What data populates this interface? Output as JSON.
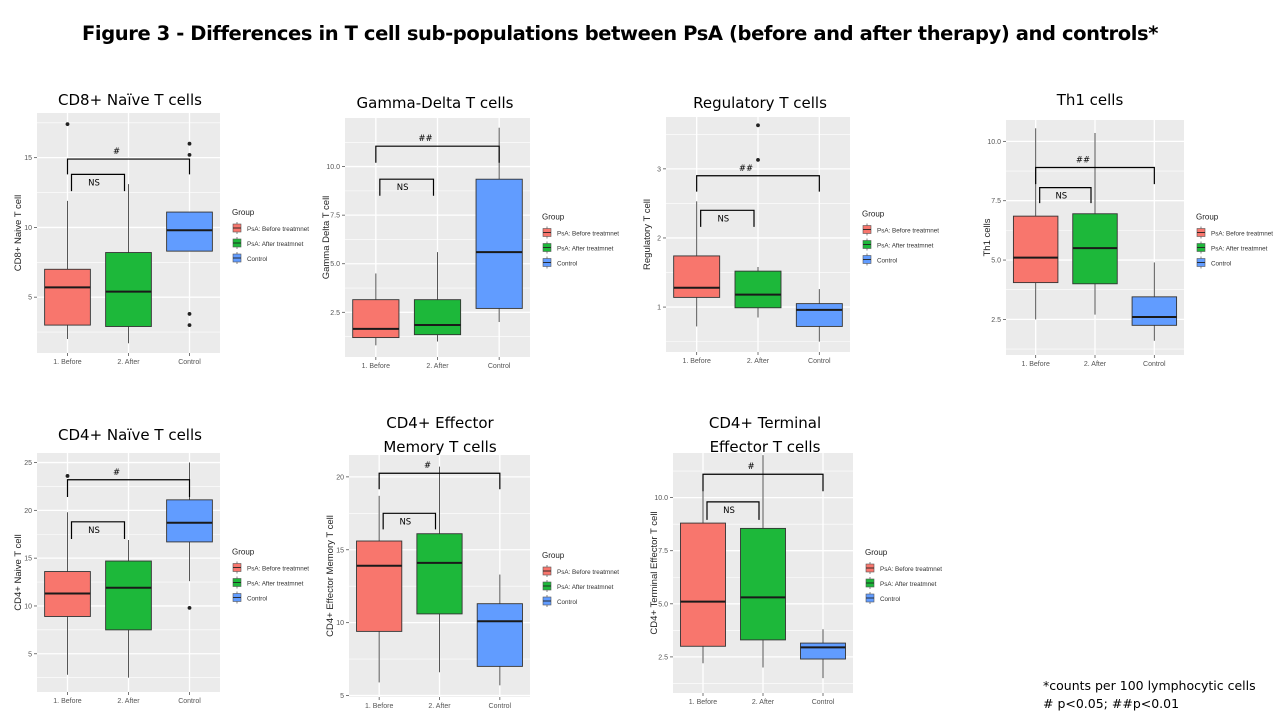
{
  "figure": {
    "title": "Figure 3 - Differences in T cell sub-populations between PsA (before and after therapy) and controls*",
    "footnotes": [
      "*counts per 100 lymphocytic cells",
      "# p<0.05; ##p<0.01"
    ]
  },
  "legend": {
    "title": "Group",
    "entries": [
      {
        "label": "PsA: Before treatmnet",
        "color": "#F8766D"
      },
      {
        "label": "PsA: After treatmnet",
        "color": "#1DB83A"
      },
      {
        "label": "Control",
        "color": "#619CFF"
      }
    ]
  },
  "colors": {
    "panel_bg": "#EBEBEB",
    "grid": "#FFFFFF",
    "box_edge": "#333333",
    "whisker": "#555555",
    "tick_text": "#555555"
  },
  "chart_data": [
    {
      "type": "boxplot",
      "title": "CD8+ Naïve T cells",
      "ylabel": "CD8+ Naive T cell",
      "xlabel": "",
      "categories": [
        "1. Before",
        "2. After",
        "Control"
      ],
      "ylim": [
        1.0,
        18.2
      ],
      "yticks": [
        5,
        10,
        15
      ],
      "ytick_labels": [
        "5",
        "10",
        "15"
      ],
      "grid": true,
      "legend": "right",
      "boxes": [
        {
          "min": 2.0,
          "q1": 3.0,
          "median": 5.7,
          "q3": 7.0,
          "max": 11.9,
          "outliers": [
            17.4
          ]
        },
        {
          "min": 1.7,
          "q1": 2.9,
          "median": 5.4,
          "q3": 8.2,
          "max": 13.1,
          "outliers": []
        },
        {
          "min": 8.3,
          "q1": 8.3,
          "median": 9.8,
          "q3": 11.1,
          "max": 11.1,
          "outliers": [
            16.0,
            15.2,
            3.8,
            3.0
          ]
        }
      ],
      "annotations": [
        {
          "label": "#",
          "from": 0,
          "to": 2,
          "y": 14.9,
          "drop": 1.1
        },
        {
          "label": "NS",
          "from": 0,
          "to": 1,
          "y": 13.8,
          "drop": 1.2
        }
      ]
    },
    {
      "type": "boxplot",
      "title": "Gamma-Delta T cells",
      "ylabel": "Gamma Delta T cell",
      "xlabel": "",
      "categories": [
        "1. Before",
        "2. After",
        "Control"
      ],
      "ylim": [
        0.2,
        12.5
      ],
      "yticks": [
        2.5,
        5.0,
        7.5,
        10.0
      ],
      "ytick_labels": [
        "2.5",
        "5.0",
        "7.5",
        "10.0"
      ],
      "grid": true,
      "legend": "right",
      "boxes": [
        {
          "min": 0.8,
          "q1": 1.2,
          "median": 1.65,
          "q3": 3.15,
          "max": 4.5,
          "outliers": []
        },
        {
          "min": 1.0,
          "q1": 1.35,
          "median": 1.85,
          "q3": 3.15,
          "max": 5.6,
          "outliers": []
        },
        {
          "min": 2.0,
          "q1": 2.7,
          "median": 5.6,
          "q3": 9.35,
          "max": 12.0,
          "outliers": []
        }
      ],
      "annotations": [
        {
          "label": "##",
          "from": 0,
          "to": 2,
          "y": 11.05,
          "drop": 0.85
        },
        {
          "label": "NS",
          "from": 0,
          "to": 1,
          "y": 9.35,
          "drop": 0.85
        }
      ]
    },
    {
      "type": "boxplot",
      "title": "Regulatory T cells",
      "ylabel": "Regulatory T cell",
      "xlabel": "",
      "categories": [
        "1. Before",
        "2. After",
        "Control"
      ],
      "ylim": [
        0.35,
        3.75
      ],
      "yticks": [
        1,
        2,
        3
      ],
      "ytick_labels": [
        "1",
        "2",
        "3"
      ],
      "grid": true,
      "legend": "right",
      "boxes": [
        {
          "min": 0.72,
          "q1": 1.14,
          "median": 1.28,
          "q3": 1.74,
          "max": 2.53,
          "outliers": []
        },
        {
          "min": 0.85,
          "q1": 0.99,
          "median": 1.18,
          "q3": 1.52,
          "max": 1.58,
          "outliers": [
            3.63,
            3.13
          ]
        },
        {
          "min": 0.5,
          "q1": 0.72,
          "median": 0.96,
          "q3": 1.05,
          "max": 1.26,
          "outliers": []
        }
      ],
      "annotations": [
        {
          "label": "##",
          "from": 0,
          "to": 2,
          "y": 2.9,
          "drop": 0.23
        },
        {
          "label": "NS",
          "from": 0,
          "to": 1,
          "y": 2.4,
          "drop": 0.24
        }
      ]
    },
    {
      "type": "boxplot",
      "title": "Th1 cells",
      "ylabel": "Th1 cells",
      "xlabel": "",
      "categories": [
        "1. Before",
        "2. After",
        "Control"
      ],
      "ylim": [
        1.0,
        10.9
      ],
      "yticks": [
        2.5,
        5.0,
        7.5,
        10.0
      ],
      "ytick_labels": [
        "2.5",
        "5.0",
        "7.5",
        "10.0"
      ],
      "grid": true,
      "legend": "right",
      "boxes": [
        {
          "min": 2.5,
          "q1": 4.05,
          "median": 5.1,
          "q3": 6.85,
          "max": 10.55,
          "outliers": []
        },
        {
          "min": 2.7,
          "q1": 4.0,
          "median": 5.5,
          "q3": 6.95,
          "max": 10.35,
          "outliers": []
        },
        {
          "min": 1.6,
          "q1": 2.25,
          "median": 2.6,
          "q3": 3.45,
          "max": 4.9,
          "outliers": []
        }
      ],
      "annotations": [
        {
          "label": "##",
          "from": 0,
          "to": 2,
          "y": 8.9,
          "drop": 0.7
        },
        {
          "label": "NS",
          "from": 0,
          "to": 1,
          "y": 8.05,
          "drop": 0.65
        }
      ]
    },
    {
      "type": "boxplot",
      "title": "CD4+ Naïve T cells",
      "ylabel": "CD4+ Naive T cell",
      "xlabel": "",
      "categories": [
        "1. Before",
        "2. After",
        "Control"
      ],
      "ylim": [
        1.0,
        26.0
      ],
      "yticks": [
        5,
        10,
        15,
        20,
        25
      ],
      "ytick_labels": [
        "5",
        "10",
        "15",
        "20",
        "25"
      ],
      "grid": true,
      "legend": "right",
      "boxes": [
        {
          "min": 2.8,
          "q1": 8.9,
          "median": 11.3,
          "q3": 13.6,
          "max": 19.8,
          "outliers": [
            23.6
          ]
        },
        {
          "min": 2.5,
          "q1": 7.5,
          "median": 11.9,
          "q3": 14.7,
          "max": 16.9,
          "outliers": []
        },
        {
          "min": 12.6,
          "q1": 16.7,
          "median": 18.7,
          "q3": 21.1,
          "max": 25.0,
          "outliers": [
            9.8
          ]
        }
      ],
      "annotations": [
        {
          "label": "#",
          "from": 0,
          "to": 2,
          "y": 23.2,
          "drop": 1.8
        },
        {
          "label": "NS",
          "from": 0,
          "to": 1,
          "y": 18.8,
          "drop": 1.8
        }
      ]
    },
    {
      "type": "boxplot",
      "title": "CD4+ Effector\nMemory T cells",
      "ylabel": "CD4+ Effector Memory T cell",
      "xlabel": "",
      "categories": [
        "1. Before",
        "2. After",
        "Control"
      ],
      "ylim": [
        4.9,
        21.5
      ],
      "yticks": [
        5,
        10,
        15,
        20
      ],
      "ytick_labels": [
        "5",
        "10",
        "15",
        "20"
      ],
      "grid": true,
      "legend": "right",
      "boxes": [
        {
          "min": 5.9,
          "q1": 9.4,
          "median": 13.9,
          "q3": 15.6,
          "max": 18.7,
          "outliers": []
        },
        {
          "min": 6.6,
          "q1": 10.6,
          "median": 14.1,
          "q3": 16.1,
          "max": 20.7,
          "outliers": []
        },
        {
          "min": 5.7,
          "q1": 7.0,
          "median": 10.1,
          "q3": 11.3,
          "max": 13.3,
          "outliers": []
        }
      ],
      "annotations": [
        {
          "label": "#",
          "from": 0,
          "to": 2,
          "y": 20.25,
          "drop": 1.1
        },
        {
          "label": "NS",
          "from": 0,
          "to": 1,
          "y": 17.5,
          "drop": 1.1
        }
      ]
    },
    {
      "type": "boxplot",
      "title": "CD4+ Terminal\nEffector T cells",
      "ylabel": "CD4+ Terminal Effector T cell",
      "xlabel": "",
      "categories": [
        "1. Before",
        "2. After",
        "Control"
      ],
      "ylim": [
        0.8,
        12.1
      ],
      "yticks": [
        2.5,
        5.0,
        7.5,
        10.0
      ],
      "ytick_labels": [
        "2.5",
        "5.0",
        "7.5",
        "10.0"
      ],
      "grid": true,
      "legend": "right",
      "boxes": [
        {
          "min": 2.2,
          "q1": 3.0,
          "median": 5.1,
          "q3": 8.8,
          "max": 10.7,
          "outliers": []
        },
        {
          "min": 2.0,
          "q1": 3.3,
          "median": 5.3,
          "q3": 8.55,
          "max": 12.0,
          "outliers": []
        },
        {
          "min": 1.5,
          "q1": 2.4,
          "median": 2.95,
          "q3": 3.15,
          "max": 3.8,
          "outliers": []
        }
      ],
      "annotations": [
        {
          "label": "#",
          "from": 0,
          "to": 2,
          "y": 11.1,
          "drop": 0.8
        },
        {
          "label": "NS",
          "from": 0,
          "to": 1,
          "y": 9.8,
          "drop": 0.85
        }
      ]
    }
  ]
}
